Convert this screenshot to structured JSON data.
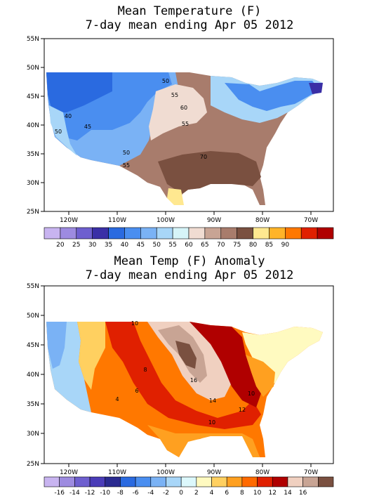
{
  "panel_top": {
    "title_line1": "Mean Temperature (F)",
    "title_line2": "7-day mean ending Apr 05 2012",
    "lat_labels": [
      "55N",
      "50N",
      "45N",
      "40N",
      "35N",
      "30N",
      "25N"
    ],
    "lon_labels": [
      "120W",
      "110W",
      "100W",
      "90W",
      "80W",
      "70W"
    ],
    "contour_labels": [
      "40",
      "45",
      "50",
      "50",
      "55",
      "50",
      "55",
      "60",
      "55",
      "70"
    ],
    "colorbar": {
      "colors": [
        "#c8b4f0",
        "#9d8be0",
        "#6e5fcf",
        "#3a2fa6",
        "#2a6ae0",
        "#4a8ef0",
        "#7ab2f5",
        "#a8d6f8",
        "#d6f4f8",
        "#f0dcd2",
        "#c8a494",
        "#a87c6c",
        "#7a5040",
        "#ffe890",
        "#ffb428",
        "#ff7800",
        "#e02000",
        "#b00000"
      ],
      "labels": [
        "20",
        "25",
        "30",
        "35",
        "40",
        "45",
        "50",
        "55",
        "60",
        "65",
        "70",
        "75",
        "80",
        "85",
        "90"
      ]
    }
  },
  "panel_bottom": {
    "title_line1": "Mean Temp (F) Anomaly",
    "title_line2": "7-day mean ending Apr 05 2012",
    "lat_labels": [
      "55N",
      "50N",
      "45N",
      "40N",
      "35N",
      "30N",
      "25N"
    ],
    "lon_labels": [
      "120W",
      "110W",
      "100W",
      "90W",
      "80W",
      "70W"
    ],
    "contour_labels": [
      "10",
      "8",
      "6",
      "4",
      "16",
      "14",
      "10",
      "12",
      "10"
    ],
    "colorbar": {
      "colors": [
        "#c8b4f0",
        "#9d8be0",
        "#6e5fcf",
        "#4a3cb8",
        "#2a2a90",
        "#2a6ae0",
        "#4a8ef0",
        "#7ab2f5",
        "#a8d6f8",
        "#dcf8fc",
        "#fffac0",
        "#ffd060",
        "#ffa020",
        "#ff6a00",
        "#e02000",
        "#b00000",
        "#f0d0c0",
        "#c8a494",
        "#7a5040"
      ],
      "labels": [
        "-16",
        "-14",
        "-12",
        "-10",
        "-8",
        "-6",
        "-4",
        "-2",
        "0",
        "2",
        "4",
        "6",
        "8",
        "10",
        "12",
        "14",
        "16"
      ]
    }
  }
}
